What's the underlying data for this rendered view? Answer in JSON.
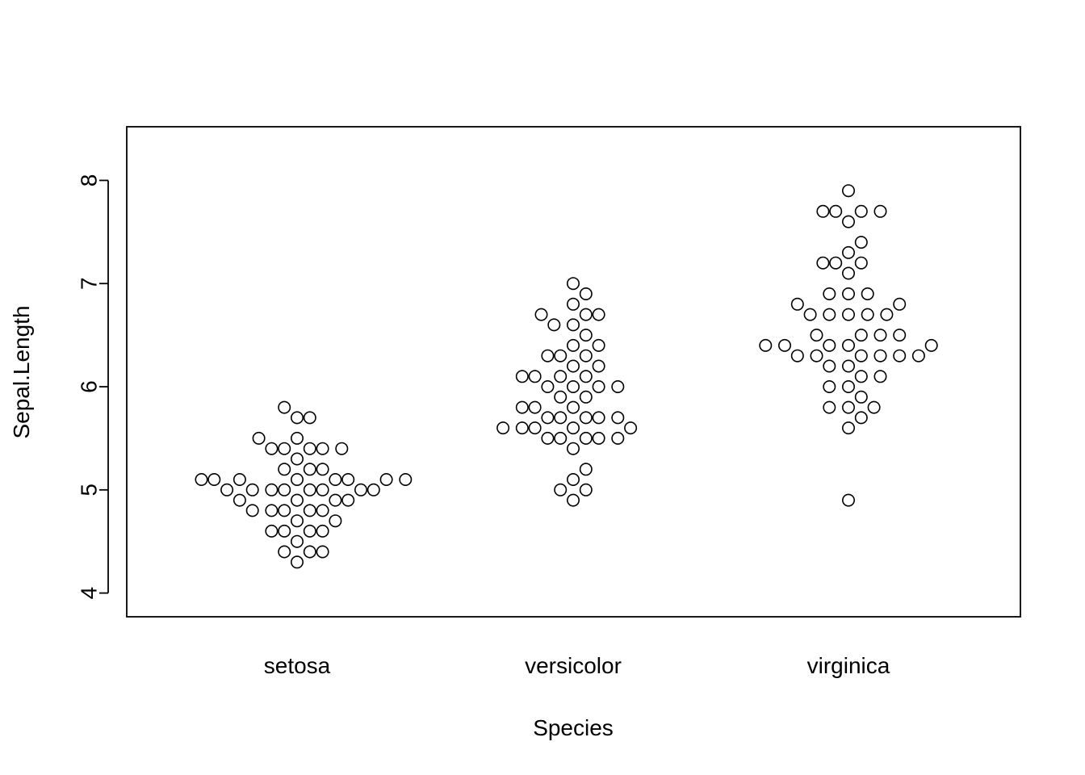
{
  "chart_data": {
    "type": "scatter",
    "subtype": "beeswarm",
    "title": "",
    "xlabel": "Species",
    "ylabel": "Sepal.Length",
    "ylim": [
      3.77,
      8.52
    ],
    "yticks": [
      "4",
      "5",
      "6",
      "7",
      "8"
    ],
    "categories": [
      "setosa",
      "versicolor",
      "virginica"
    ],
    "marker": "open-circle",
    "grid": false,
    "legend": "none",
    "series": [
      {
        "category": "setosa",
        "values": [
          5.1,
          4.9,
          4.7,
          4.6,
          5.0,
          5.4,
          4.6,
          5.0,
          4.4,
          4.9,
          5.4,
          4.8,
          4.8,
          4.3,
          5.8,
          5.7,
          5.4,
          5.1,
          5.7,
          5.1,
          5.4,
          5.1,
          4.6,
          5.1,
          4.8,
          5.0,
          5.0,
          5.2,
          5.2,
          4.7,
          4.8,
          5.4,
          5.2,
          5.5,
          4.9,
          5.0,
          5.5,
          4.9,
          4.4,
          5.1,
          5.0,
          4.5,
          4.4,
          5.0,
          5.1,
          4.8,
          5.1,
          4.6,
          5.3,
          5.0
        ]
      },
      {
        "category": "versicolor",
        "values": [
          7.0,
          6.4,
          6.9,
          5.5,
          6.5,
          5.7,
          6.3,
          4.9,
          6.6,
          5.2,
          5.0,
          5.9,
          6.0,
          6.1,
          5.6,
          6.7,
          5.6,
          5.8,
          6.2,
          5.6,
          5.9,
          6.1,
          6.3,
          6.1,
          6.4,
          6.6,
          6.8,
          6.7,
          6.0,
          5.7,
          5.5,
          5.5,
          5.8,
          6.0,
          5.4,
          6.0,
          6.7,
          6.3,
          5.6,
          5.5,
          5.5,
          6.1,
          5.8,
          5.0,
          5.6,
          5.7,
          5.7,
          6.2,
          5.1,
          5.7
        ]
      },
      {
        "category": "virginica",
        "values": [
          6.3,
          5.8,
          7.1,
          6.3,
          6.5,
          7.6,
          4.9,
          7.3,
          6.7,
          7.2,
          6.5,
          6.4,
          6.8,
          5.7,
          5.8,
          6.4,
          6.5,
          7.7,
          7.7,
          6.0,
          6.9,
          5.6,
          7.7,
          6.3,
          6.7,
          7.2,
          6.2,
          6.1,
          6.4,
          7.2,
          7.4,
          7.9,
          6.4,
          6.3,
          6.1,
          7.7,
          6.3,
          6.4,
          6.0,
          6.9,
          6.7,
          6.9,
          5.8,
          6.8,
          6.7,
          6.7,
          6.3,
          6.5,
          6.2,
          5.9
        ]
      }
    ]
  }
}
